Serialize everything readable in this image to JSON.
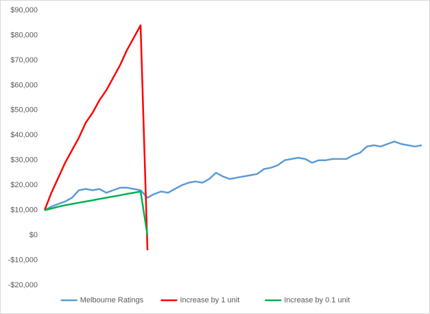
{
  "chart_data": {
    "type": "line",
    "series": [
      {
        "name": "Melbourne Ratings",
        "color": "#5b9bd5",
        "values": [
          10000,
          11500,
          12500,
          13500,
          15000,
          18000,
          18500,
          18000,
          18500,
          17000,
          18000,
          19000,
          19000,
          18500,
          18000,
          15000,
          16500,
          17500,
          17000,
          18500,
          20000,
          21000,
          21500,
          21000,
          22500,
          25000,
          23500,
          22500,
          23000,
          23500,
          24000,
          24500,
          26500,
          27000,
          28000,
          30000,
          30500,
          31000,
          30500,
          29000,
          30000,
          30000,
          30500,
          30500,
          30500,
          32000,
          33000,
          35500,
          36000,
          35500,
          36500,
          37500,
          36500,
          36000,
          35500,
          36000
        ]
      },
      {
        "name": "Increase by 1 unit",
        "color": "#ff0000",
        "values": [
          10000,
          17000,
          23000,
          29000,
          34000,
          39000,
          45000,
          49000,
          54000,
          58000,
          63000,
          68000,
          74000,
          79000,
          84000,
          -6000,
          null,
          null,
          null,
          null,
          null,
          null,
          null,
          null,
          null,
          null,
          null,
          null,
          null,
          null,
          null,
          null,
          null,
          null,
          null,
          null,
          null,
          null,
          null,
          null,
          null,
          null,
          null,
          null,
          null,
          null,
          null,
          null,
          null,
          null,
          null,
          null,
          null,
          null,
          null,
          null
        ]
      },
      {
        "name": "Increase by 0.1 unit",
        "color": "#00b050",
        "values": [
          10000,
          10700,
          11400,
          12000,
          12500,
          13000,
          13500,
          14000,
          14500,
          15000,
          15500,
          16000,
          16500,
          17000,
          17500,
          0,
          null,
          null,
          null,
          null,
          null,
          null,
          null,
          null,
          null,
          null,
          null,
          null,
          null,
          null,
          null,
          null,
          null,
          null,
          null,
          null,
          null,
          null,
          null,
          null,
          null,
          null,
          null,
          null,
          null,
          null,
          null,
          null,
          null,
          null,
          null,
          null,
          null,
          null,
          null,
          null
        ]
      }
    ],
    "ylim": [
      -20000,
      90000
    ],
    "yticks": [
      {
        "value": -20000,
        "label": "-$20,000"
      },
      {
        "value": -10000,
        "label": "-$10,000"
      },
      {
        "value": 0,
        "label": "$0"
      },
      {
        "value": 10000,
        "label": "$10,000"
      },
      {
        "value": 20000,
        "label": "$20,000"
      },
      {
        "value": 30000,
        "label": "$30,000"
      },
      {
        "value": 40000,
        "label": "$40,000"
      },
      {
        "value": 50000,
        "label": "$50,000"
      },
      {
        "value": 60000,
        "label": "$60,000"
      },
      {
        "value": 70000,
        "label": "$70,000"
      },
      {
        "value": 80000,
        "label": "$80,000"
      },
      {
        "value": 90000,
        "label": "$90,000"
      }
    ],
    "grid": false,
    "legend": "bottom"
  }
}
